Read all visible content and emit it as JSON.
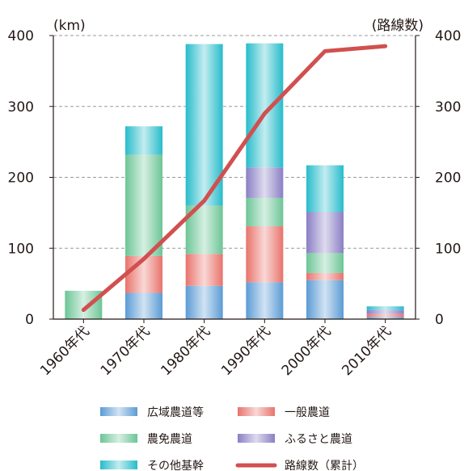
{
  "chart_data": {
    "type": "bar",
    "stacked": true,
    "title": "",
    "y_left_unit": "(km)",
    "y_right_unit": "(路線数)",
    "ylim": [
      0,
      400
    ],
    "y_ticks": [
      0,
      100,
      200,
      300,
      400
    ],
    "grid": "horizontal-dashed",
    "categories": [
      "1960年代",
      "1970年代",
      "1980年代",
      "1990年代",
      "2000年代",
      "2010年代"
    ],
    "series": [
      {
        "name": "広域農道等",
        "type": "bar",
        "axis": "left",
        "color": "#5b9bd5",
        "values": [
          0,
          37,
          47,
          52,
          55,
          3
        ]
      },
      {
        "name": "一般農道",
        "type": "bar",
        "axis": "left",
        "color": "#e8736b",
        "values": [
          0,
          52,
          45,
          79,
          10,
          4
        ]
      },
      {
        "name": "農免農道",
        "type": "bar",
        "axis": "left",
        "color": "#6cc596",
        "values": [
          40,
          143,
          68,
          40,
          28,
          0
        ]
      },
      {
        "name": "ふるさと農道",
        "type": "bar",
        "axis": "left",
        "color": "#8a7fc4",
        "values": [
          0,
          0,
          0,
          43,
          58,
          6
        ]
      },
      {
        "name": "その他基幹",
        "type": "bar",
        "axis": "left",
        "color": "#27bccb",
        "values": [
          0,
          40,
          228,
          175,
          66,
          5
        ]
      },
      {
        "name": "路線数（累計）",
        "type": "line",
        "axis": "right",
        "color": "#d1504f",
        "values": [
          13,
          85,
          167,
          290,
          378,
          385
        ]
      }
    ]
  }
}
